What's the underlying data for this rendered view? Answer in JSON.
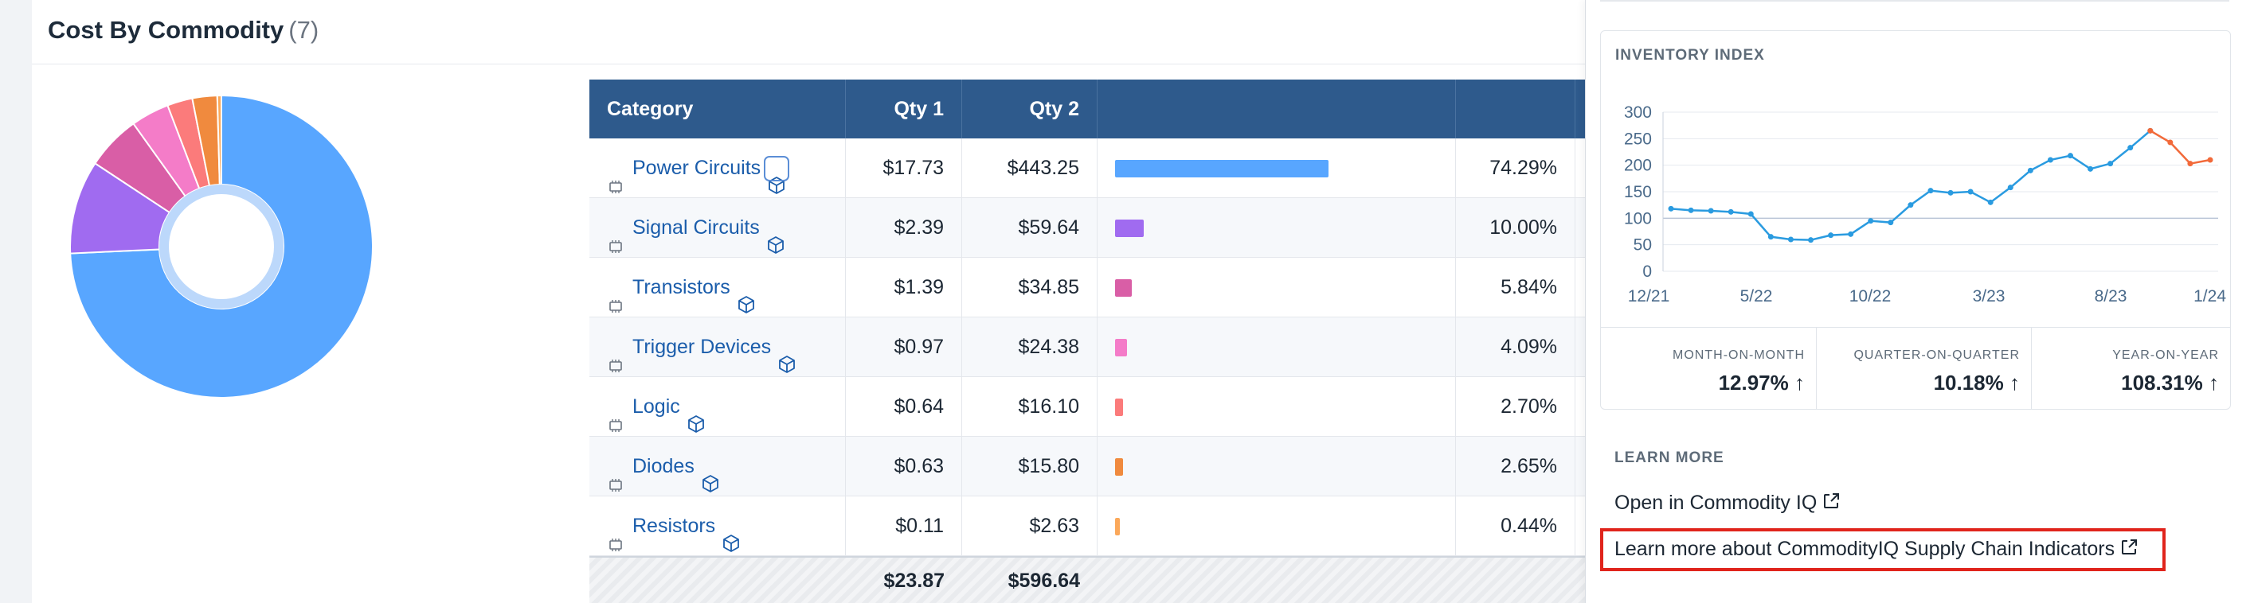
{
  "card": {
    "title": "Cost By Commodity",
    "count": "(7)"
  },
  "table": {
    "headers": {
      "category": "Category",
      "qty1": "Qty 1",
      "qty2": "Qty 2",
      "bar": "",
      "pct": ""
    },
    "rows": [
      {
        "category": "Power Circuits",
        "qty1": "$17.73",
        "qty2": "$443.25",
        "pct": "74.29%",
        "share": 74.29,
        "color": "#58a6ff",
        "icon": "ic-chip-icon"
      },
      {
        "category": "Signal Circuits",
        "qty1": "$2.39",
        "qty2": "$59.64",
        "pct": "10.00%",
        "share": 10.0,
        "color": "#a06bf0",
        "icon": "ic-chip-icon"
      },
      {
        "category": "Transistors",
        "qty1": "$1.39",
        "qty2": "$34.85",
        "pct": "5.84%",
        "share": 5.84,
        "color": "#d95ea6",
        "icon": "transistor-icon"
      },
      {
        "category": "Trigger Devices",
        "qty1": "$0.97",
        "qty2": "$24.38",
        "pct": "4.09%",
        "share": 4.09,
        "color": "#f47cc8",
        "icon": "trigger-device-icon"
      },
      {
        "category": "Logic",
        "qty1": "$0.64",
        "qty2": "$16.10",
        "pct": "2.70%",
        "share": 2.7,
        "color": "#fb7b7b",
        "icon": "logic-chip-icon"
      },
      {
        "category": "Diodes",
        "qty1": "$0.63",
        "qty2": "$15.80",
        "pct": "2.65%",
        "share": 2.65,
        "color": "#f08a3e",
        "icon": "diode-icon"
      },
      {
        "category": "Resistors",
        "qty1": "$0.11",
        "qty2": "$2.63",
        "pct": "0.44%",
        "share": 0.44,
        "color": "#fba85a",
        "icon": "resistor-icon"
      }
    ],
    "totals": {
      "qty1": "$23.87",
      "qty2": "$596.64"
    }
  },
  "inventory": {
    "title": "INVENTORY INDEX",
    "chart_data": {
      "type": "line",
      "y_ticks": [
        "300",
        "250",
        "200",
        "150",
        "100",
        "50",
        "0"
      ],
      "x_ticks": [
        "12/21",
        "5/22",
        "10/22",
        "3/23",
        "8/23",
        "1/24"
      ],
      "ylim": [
        0,
        300
      ],
      "series": [
        {
          "color": "#2a9be0",
          "values": [
            118,
            115,
            114,
            112,
            108,
            65,
            60,
            59,
            68,
            70,
            95,
            92,
            125,
            152,
            148,
            150,
            130,
            158,
            190,
            210,
            218,
            193,
            203,
            233,
            265
          ]
        },
        {
          "color": "#f26a3a",
          "values": [
            265,
            243,
            203,
            210
          ]
        }
      ],
      "grid": true
    },
    "metrics": [
      {
        "label": "MONTH-ON-MONTH",
        "value": "12.97%"
      },
      {
        "label": "QUARTER-ON-QUARTER",
        "value": "10.18%"
      },
      {
        "label": "YEAR-ON-YEAR",
        "value": "108.31%"
      }
    ],
    "arrow_glyph": "↑"
  },
  "learn_more": {
    "label": "LEARN MORE",
    "open_link": "Open in Commodity IQ",
    "learn_link": "Learn more about CommodityIQ Supply Chain Indicators"
  }
}
